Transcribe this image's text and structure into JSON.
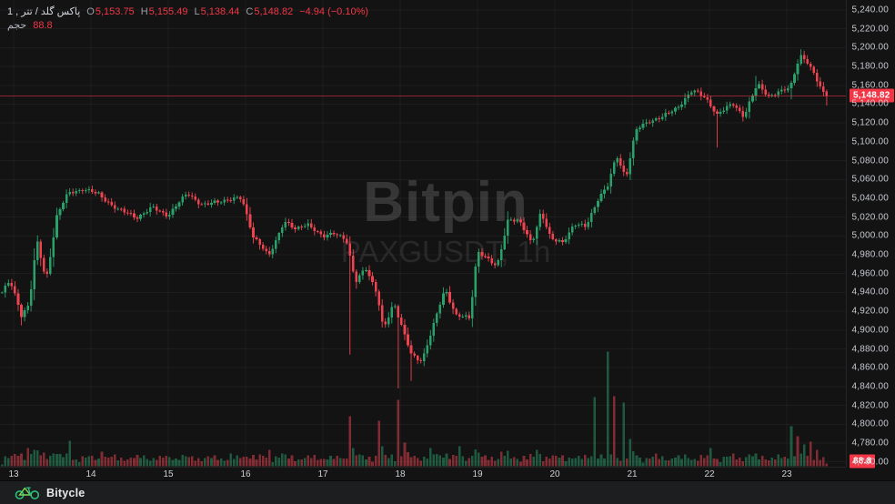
{
  "legend": {
    "symbol": "پاکس گلد / تتر , 1",
    "open_label": "O",
    "open": "5,153.75",
    "high_label": "H",
    "high": "5,155.49",
    "low_label": "L",
    "low": "5,138.44",
    "close_label": "C",
    "close": "5,148.82",
    "change": "−4.94 (−0.10%)",
    "volume_label": "حجم",
    "volume": "88.8"
  },
  "watermark": {
    "title": "Bitpin",
    "subtitle": "PAXGUSDT, 1h"
  },
  "footer": {
    "brand": "Bitycle"
  },
  "chart_data": {
    "type": "candlestick_with_volume",
    "symbol": "PAXGUSDT",
    "interval": "1h",
    "last_price": 5148.82,
    "last_price_label": "5,148.82",
    "last_volume_label": "88.8",
    "last_candle": {
      "open": 5153.75,
      "high": 5155.49,
      "low": 5138.44,
      "close": 5148.82
    },
    "colors": {
      "up": "#2aa06b",
      "down": "#ef4450",
      "badge": "#f23645",
      "price_line": "rgba(242,54,69,0.55)",
      "grid": "rgba(255,255,255,0.045)"
    },
    "y_axis": {
      "min": 4760,
      "max": 5240,
      "step": 20,
      "labels": [
        "5,240.00",
        "5,220.00",
        "5,200.00",
        "5,180.00",
        "5,160.00",
        "5,140.00",
        "5,120.00",
        "5,100.00",
        "5,080.00",
        "5,060.00",
        "5,040.00",
        "5,020.00",
        "5,000.00",
        "4,980.00",
        "4,960.00",
        "4,940.00",
        "4,920.00",
        "4,900.00",
        "4,880.00",
        "4,860.00",
        "4,840.00",
        "4,820.00",
        "4,800.00",
        "4,780.00",
        "4,760.00"
      ]
    },
    "x_axis": {
      "labels": [
        "13",
        "14",
        "15",
        "16",
        "17",
        "18",
        "19",
        "20",
        "21",
        "22",
        "23"
      ],
      "unit": "day of month"
    },
    "price_keypoints": [
      [
        12.85,
        4940
      ],
      [
        12.95,
        4952
      ],
      [
        13.05,
        4930
      ],
      [
        13.1,
        4916
      ],
      [
        13.2,
        4928
      ],
      [
        13.3,
        4995
      ],
      [
        13.42,
        4952
      ],
      [
        13.56,
        5022
      ],
      [
        13.7,
        5045
      ],
      [
        13.9,
        5050
      ],
      [
        14.1,
        5044
      ],
      [
        14.35,
        5028
      ],
      [
        14.6,
        5020
      ],
      [
        14.8,
        5030
      ],
      [
        15.0,
        5022
      ],
      [
        15.25,
        5046
      ],
      [
        15.45,
        5032
      ],
      [
        15.7,
        5038
      ],
      [
        15.95,
        5040
      ],
      [
        16.1,
        5000
      ],
      [
        16.3,
        4978
      ],
      [
        16.5,
        5016
      ],
      [
        16.65,
        5006
      ],
      [
        16.8,
        5014
      ],
      [
        17.0,
        4998
      ],
      [
        17.15,
        5004
      ],
      [
        17.3,
        4996
      ],
      [
        17.42,
        4950
      ],
      [
        17.55,
        4968
      ],
      [
        17.7,
        4938
      ],
      [
        17.78,
        4900
      ],
      [
        17.92,
        4930
      ],
      [
        18.05,
        4896
      ],
      [
        18.15,
        4872
      ],
      [
        18.28,
        4868
      ],
      [
        18.42,
        4902
      ],
      [
        18.58,
        4944
      ],
      [
        18.72,
        4916
      ],
      [
        18.9,
        4912
      ],
      [
        19.0,
        4985
      ],
      [
        19.1,
        4978
      ],
      [
        19.25,
        4966
      ],
      [
        19.4,
        5020
      ],
      [
        19.55,
        5014
      ],
      [
        19.7,
        4992
      ],
      [
        19.82,
        5026
      ],
      [
        19.95,
        4996
      ],
      [
        20.1,
        4994
      ],
      [
        20.25,
        5012
      ],
      [
        20.4,
        5010
      ],
      [
        20.55,
        5038
      ],
      [
        20.68,
        5052
      ],
      [
        20.8,
        5086
      ],
      [
        20.92,
        5062
      ],
      [
        21.05,
        5112
      ],
      [
        21.2,
        5122
      ],
      [
        21.4,
        5126
      ],
      [
        21.6,
        5138
      ],
      [
        21.78,
        5154
      ],
      [
        21.95,
        5148
      ],
      [
        22.1,
        5128
      ],
      [
        22.3,
        5142
      ],
      [
        22.45,
        5126
      ],
      [
        22.62,
        5162
      ],
      [
        22.78,
        5148
      ],
      [
        22.95,
        5154
      ],
      [
        23.05,
        5160
      ],
      [
        23.17,
        5192
      ],
      [
        23.28,
        5182
      ],
      [
        23.38,
        5168
      ],
      [
        23.5,
        5148.82
      ]
    ],
    "wick_extremes": [
      {
        "t": 13.1,
        "low": 4905
      },
      {
        "t": 17.33,
        "low": 4874
      },
      {
        "t": 18.15,
        "low": 4846
      },
      {
        "t": 17.96,
        "low": 4838
      },
      {
        "t": 22.08,
        "low": 5094
      },
      {
        "t": 23.07,
        "low": 5145
      },
      {
        "t": 22.62,
        "high": 5170
      },
      {
        "t": 23.17,
        "high": 5197
      }
    ],
    "volume_spikes": [
      {
        "t": 13.18,
        "h": 20,
        "dir": "down"
      },
      {
        "t": 13.74,
        "h": 28,
        "dir": "up"
      },
      {
        "t": 14.14,
        "h": 16,
        "dir": "down"
      },
      {
        "t": 14.7,
        "h": 12,
        "dir": "up"
      },
      {
        "t": 15.6,
        "h": 12,
        "dir": "down"
      },
      {
        "t": 15.8,
        "h": 14,
        "dir": "up"
      },
      {
        "t": 16.3,
        "h": 18,
        "dir": "down"
      },
      {
        "t": 16.47,
        "h": 14,
        "dir": "up"
      },
      {
        "t": 16.82,
        "h": 12,
        "dir": "down"
      },
      {
        "t": 17.33,
        "h": 55,
        "dir": "down"
      },
      {
        "t": 17.39,
        "h": 20,
        "dir": "up"
      },
      {
        "t": 17.71,
        "h": 50,
        "dir": "down"
      },
      {
        "t": 17.78,
        "h": 22,
        "dir": "up"
      },
      {
        "t": 17.96,
        "h": 73,
        "dir": "down"
      },
      {
        "t": 18.04,
        "h": 26,
        "dir": "down"
      },
      {
        "t": 18.41,
        "h": 20,
        "dir": "up"
      },
      {
        "t": 18.59,
        "h": 14,
        "dir": "up"
      },
      {
        "t": 18.76,
        "h": 22,
        "dir": "up"
      },
      {
        "t": 19.3,
        "h": 16,
        "dir": "down"
      },
      {
        "t": 19.75,
        "h": 18,
        "dir": "up"
      },
      {
        "t": 20.1,
        "h": 12,
        "dir": "down"
      },
      {
        "t": 20.52,
        "h": 76,
        "dir": "up"
      },
      {
        "t": 20.67,
        "h": 126,
        "dir": "up"
      },
      {
        "t": 20.75,
        "h": 77,
        "dir": "down"
      },
      {
        "t": 20.89,
        "h": 70,
        "dir": "up"
      },
      {
        "t": 20.96,
        "h": 30,
        "dir": "up"
      },
      {
        "t": 21.3,
        "h": 14,
        "dir": "down"
      },
      {
        "t": 22.0,
        "h": 20,
        "dir": "up"
      },
      {
        "t": 22.3,
        "h": 14,
        "dir": "down"
      },
      {
        "t": 23.07,
        "h": 44,
        "dir": "up"
      },
      {
        "t": 23.14,
        "h": 33,
        "dir": "down"
      },
      {
        "t": 23.22,
        "h": 24,
        "dir": "up"
      },
      {
        "t": 23.3,
        "h": 27,
        "dir": "down"
      },
      {
        "t": 23.38,
        "h": 18,
        "dir": "down"
      },
      {
        "t": 23.46,
        "h": 10,
        "dir": "down"
      }
    ]
  }
}
